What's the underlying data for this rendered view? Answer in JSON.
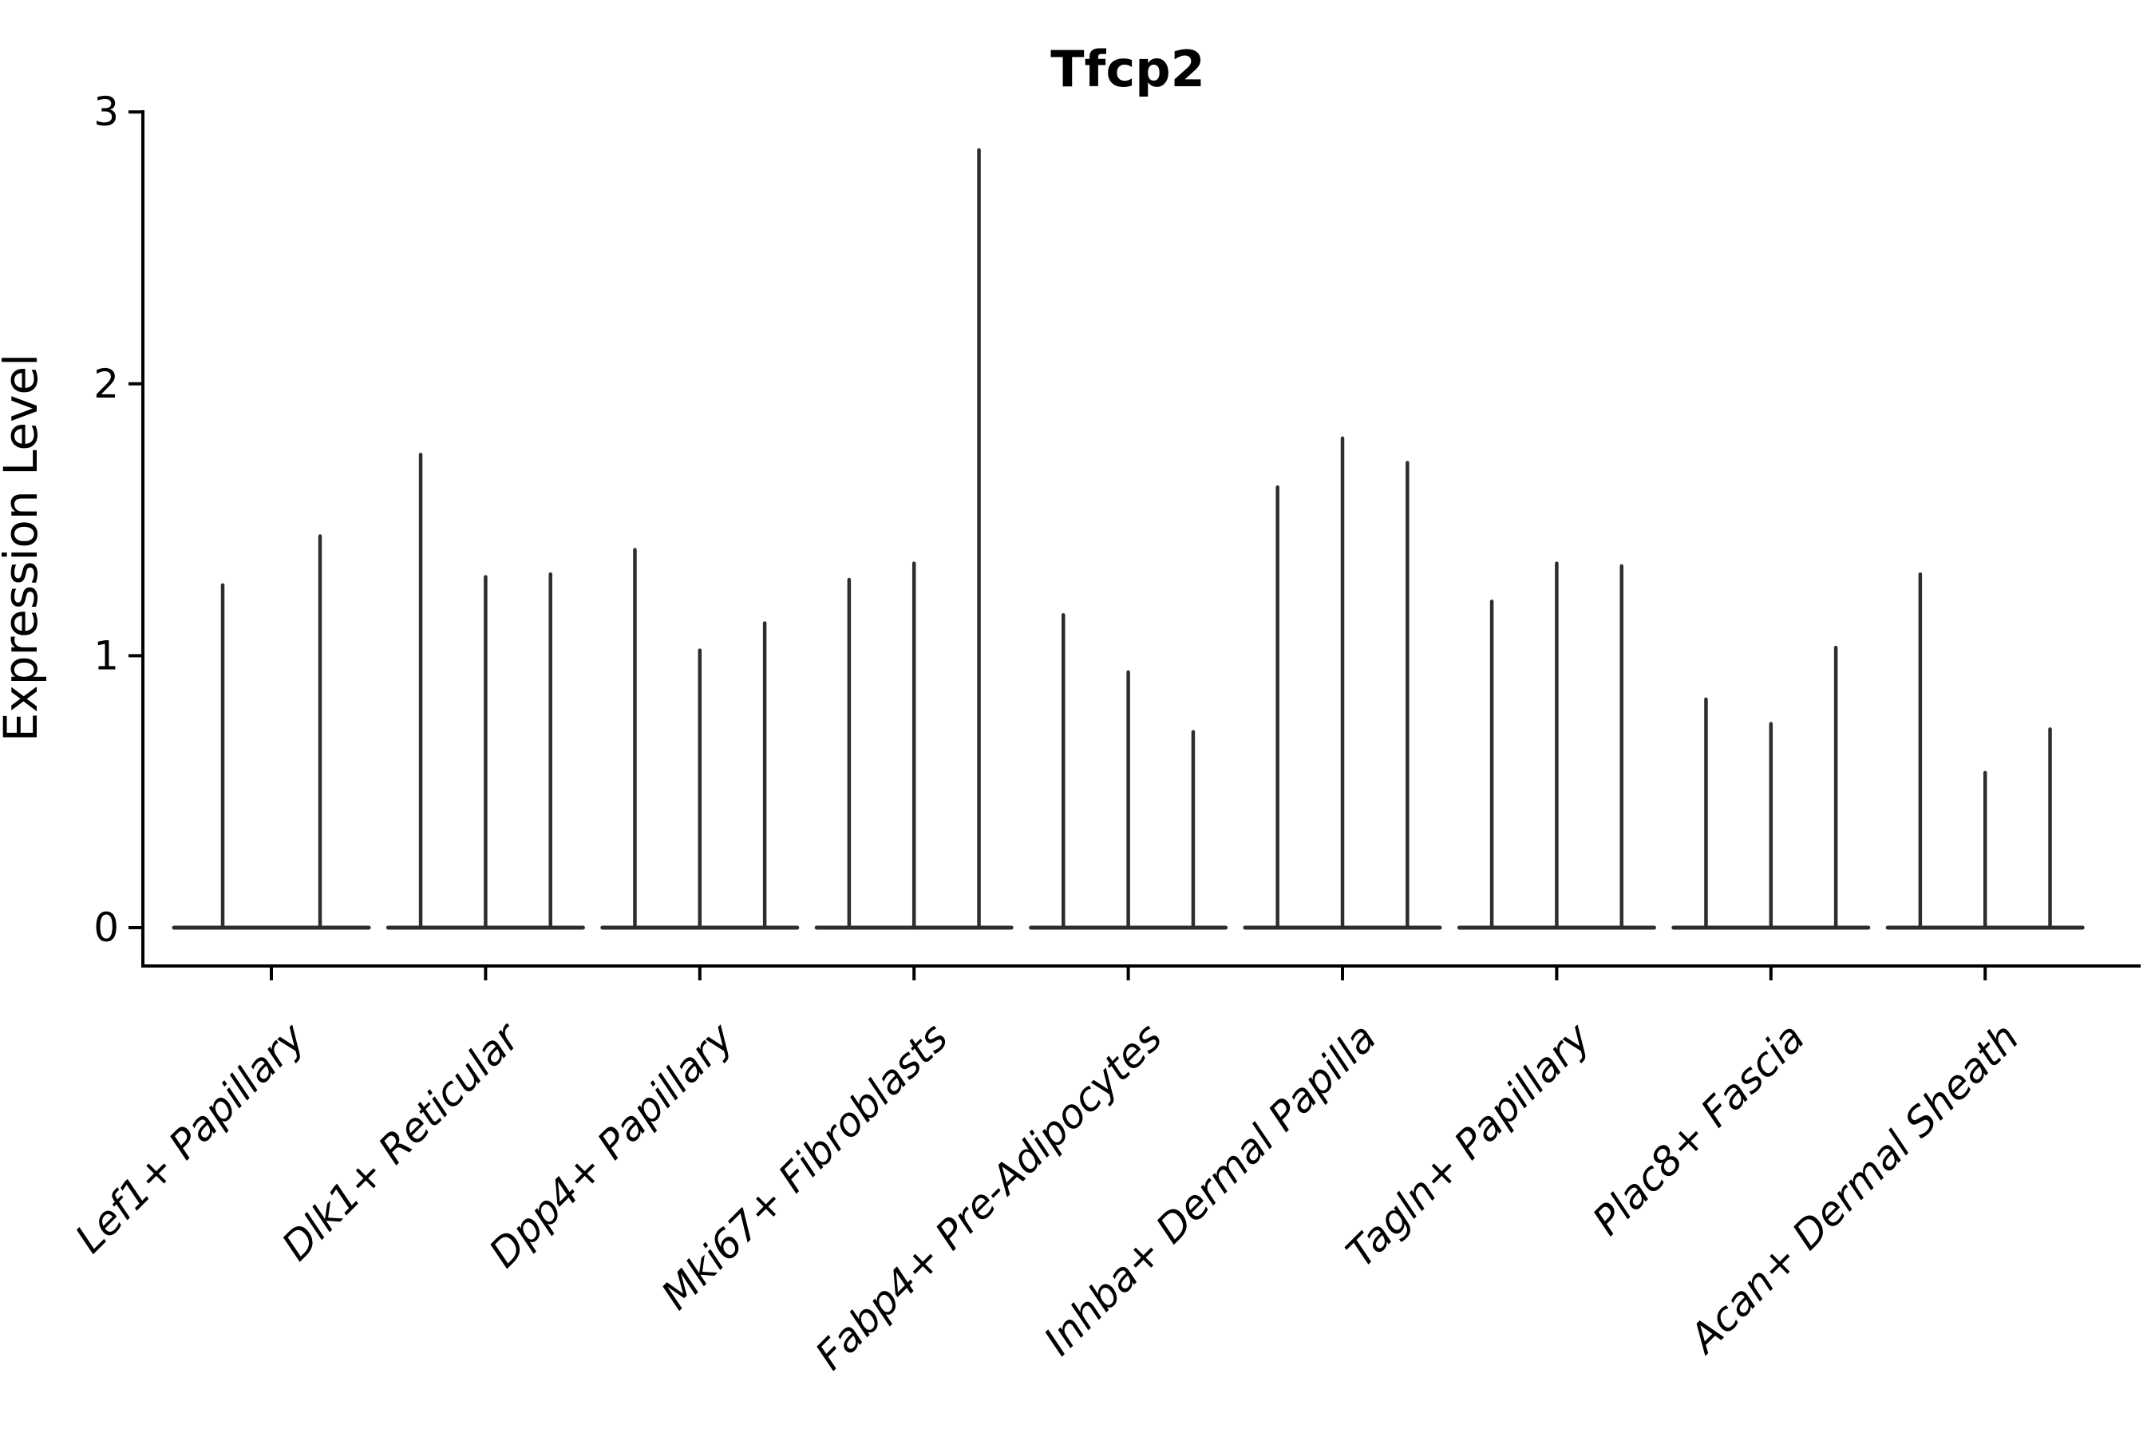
{
  "figure": {
    "title": "Tfcp2",
    "y_axis": {
      "label": "Expression Level",
      "tick_labels": [
        "0",
        "1",
        "2",
        "3"
      ]
    }
  },
  "colors": {
    "violin_line": "#2d2d2d",
    "axis": "#000000",
    "text": "#000000",
    "background": "#ffffff"
  },
  "chart_data": {
    "type": "violin",
    "title": "Tfcp2",
    "xlabel": "",
    "ylabel": "Expression Level",
    "ylim": [
      0,
      3
    ],
    "yticks": [
      0,
      1,
      2,
      3
    ],
    "grid": false,
    "legend_position": "none",
    "orientation": "vertical",
    "shape_note": "Each violin is collapsed: a flat wide body at expression 0 with a thin vertical spike reaching the maximum expression value",
    "categories": [
      "Lef1+ Papillary",
      "Dlk1+ Reticular",
      "Dpp4+ Papillary",
      "Mki67+ Fibroblasts",
      "Fabp4+ Pre-Adipocytes",
      "Inhba+ Dermal Papilla",
      "Tagln+ Papillary",
      "Plac8+ Fascia",
      "Acan+ Dermal Sheath"
    ],
    "groups": [
      {
        "label": "Lef1+ Papillary",
        "violin_peaks": [
          1.26,
          1.44
        ]
      },
      {
        "label": "Dlk1+ Reticular",
        "violin_peaks": [
          1.74,
          1.29,
          1.3
        ]
      },
      {
        "label": "Dpp4+ Papillary",
        "violin_peaks": [
          1.39,
          1.02,
          1.12
        ]
      },
      {
        "label": "Mki67+ Fibroblasts",
        "violin_peaks": [
          1.28,
          1.34,
          2.86
        ]
      },
      {
        "label": "Fabp4+ Pre-Adipocytes",
        "violin_peaks": [
          1.15,
          0.94,
          0.72
        ]
      },
      {
        "label": "Inhba+ Dermal Papilla",
        "violin_peaks": [
          1.62,
          1.8,
          1.71
        ]
      },
      {
        "label": "Tagln+ Papillary",
        "violin_peaks": [
          1.2,
          1.34,
          1.33
        ]
      },
      {
        "label": "Plac8+ Fascia",
        "violin_peaks": [
          0.84,
          0.75,
          1.03
        ]
      },
      {
        "label": "Acan+ Dermal Sheath",
        "violin_peaks": [
          1.3,
          0.57,
          0.73
        ]
      }
    ]
  }
}
